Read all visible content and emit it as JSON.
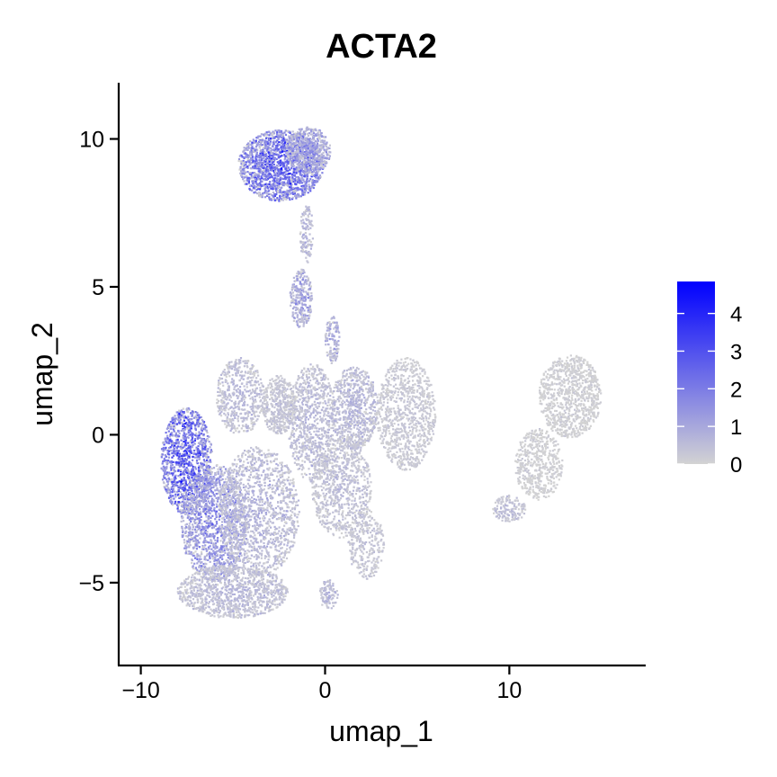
{
  "chart_data": {
    "type": "scatter",
    "title": "ACTA2",
    "xlabel": "umap_1",
    "ylabel": "umap_2",
    "xlim": [
      -11.2,
      17.4
    ],
    "ylim": [
      -7.8,
      11.9
    ],
    "xticks": [
      -10,
      0,
      10
    ],
    "yticks": [
      -5,
      0,
      5,
      10
    ],
    "xtick_labels": [
      "−10",
      "0",
      "10"
    ],
    "ytick_labels": [
      "−5",
      "0",
      "5",
      "10"
    ],
    "grid": false,
    "legend": {
      "placement": "right",
      "type": "colorbar",
      "min": 0,
      "max": 4.85,
      "ticks": [
        0,
        1,
        2,
        3,
        4
      ],
      "tick_labels": [
        "0",
        "1",
        "2",
        "3",
        "4"
      ],
      "low_color": "#d3d3d3",
      "high_color": "#0000ff"
    },
    "point_color_low": "#d3d3d3",
    "point_color_high": "#0000ff",
    "clusters": [
      {
        "cx": -2.4,
        "cy": 9.1,
        "rx": 2.3,
        "ry": 1.2,
        "density": 1600,
        "level": 2.6
      },
      {
        "cx": -0.9,
        "cy": 9.6,
        "rx": 1.2,
        "ry": 0.8,
        "density": 500,
        "level": 1.4
      },
      {
        "cx": -1.0,
        "cy": 6.8,
        "rx": 0.35,
        "ry": 1.0,
        "density": 120,
        "level": 0.8
      },
      {
        "cx": -1.3,
        "cy": 4.6,
        "rx": 0.6,
        "ry": 1.0,
        "density": 260,
        "level": 1.2
      },
      {
        "cx": 0.4,
        "cy": 3.2,
        "rx": 0.4,
        "ry": 0.8,
        "density": 120,
        "level": 1.0
      },
      {
        "cx": -7.5,
        "cy": -0.9,
        "rx": 1.4,
        "ry": 1.8,
        "density": 1100,
        "level": 2.8
      },
      {
        "cx": -6.0,
        "cy": -3.0,
        "rx": 1.8,
        "ry": 2.0,
        "density": 1300,
        "level": 1.6
      },
      {
        "cx": -5.0,
        "cy": -5.3,
        "rx": 3.0,
        "ry": 0.9,
        "density": 1100,
        "level": 0.6
      },
      {
        "cx": -3.6,
        "cy": -2.6,
        "rx": 2.2,
        "ry": 2.2,
        "density": 1300,
        "level": 0.7
      },
      {
        "cx": -4.6,
        "cy": 1.3,
        "rx": 1.3,
        "ry": 1.3,
        "density": 500,
        "level": 0.6
      },
      {
        "cx": -2.5,
        "cy": 1.0,
        "rx": 0.9,
        "ry": 1.0,
        "density": 450,
        "level": 0.4
      },
      {
        "cx": -0.7,
        "cy": 0.4,
        "rx": 1.3,
        "ry": 2.0,
        "density": 800,
        "level": 0.6
      },
      {
        "cx": 0.9,
        "cy": -1.8,
        "rx": 1.6,
        "ry": 1.7,
        "density": 800,
        "level": 0.5
      },
      {
        "cx": 1.6,
        "cy": 0.9,
        "rx": 1.3,
        "ry": 1.4,
        "density": 700,
        "level": 0.7
      },
      {
        "cx": 4.4,
        "cy": 0.7,
        "rx": 1.6,
        "ry": 1.9,
        "density": 900,
        "level": 0.3
      },
      {
        "cx": 2.2,
        "cy": -3.7,
        "rx": 1.0,
        "ry": 1.2,
        "density": 300,
        "level": 0.4
      },
      {
        "cx": 0.2,
        "cy": -5.4,
        "rx": 0.5,
        "ry": 0.5,
        "density": 100,
        "level": 0.7
      },
      {
        "cx": 13.3,
        "cy": 1.3,
        "rx": 1.7,
        "ry": 1.4,
        "density": 900,
        "level": 0.1
      },
      {
        "cx": 11.6,
        "cy": -1.0,
        "rx": 1.3,
        "ry": 1.2,
        "density": 500,
        "level": 0.1
      },
      {
        "cx": 10.0,
        "cy": -2.5,
        "rx": 0.9,
        "ry": 0.45,
        "density": 150,
        "level": 0.5
      }
    ]
  }
}
